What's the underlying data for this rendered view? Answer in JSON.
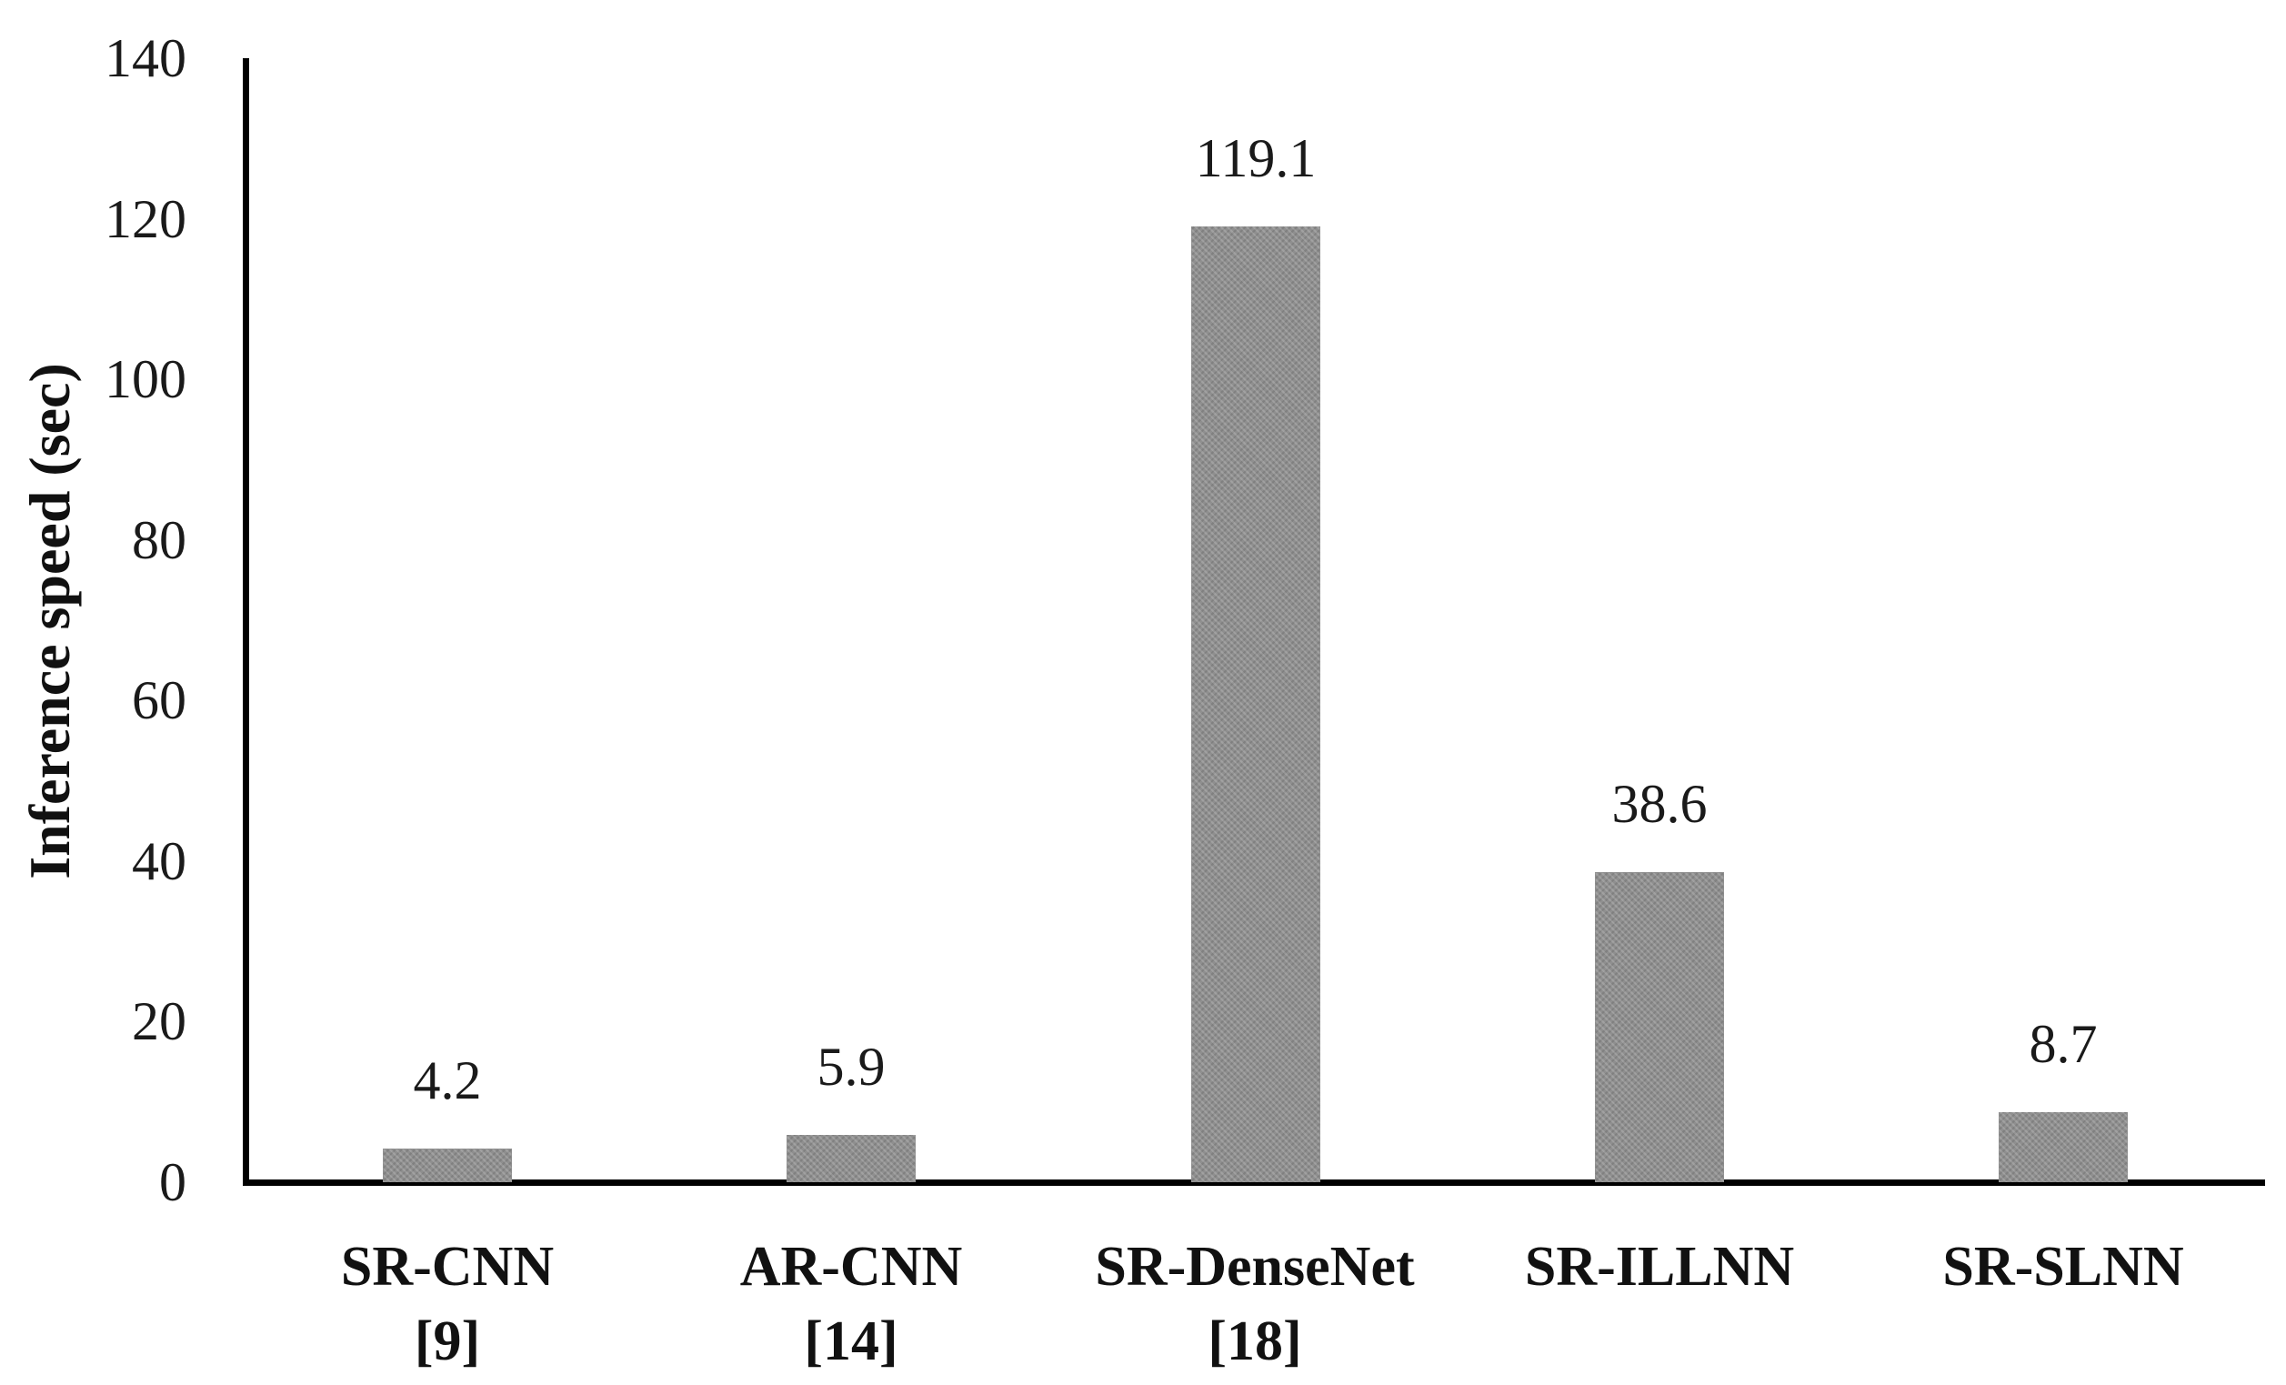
{
  "chart_data": {
    "type": "bar",
    "title": "",
    "ylabel": "Inference speed (sec)",
    "xlabel": "",
    "ylim": [
      0,
      140
    ],
    "yticks": [
      0,
      20,
      40,
      60,
      80,
      100,
      120,
      140
    ],
    "grid": false,
    "legend": "none",
    "categories": [
      "SR-CNN [9]",
      "AR-CNN [14]",
      "SR-DenseNet [18]",
      "SR-ILLNN",
      "SR-SLNN"
    ],
    "category_lines": [
      [
        "SR-CNN",
        "[9]"
      ],
      [
        "AR-CNN",
        "[14]"
      ],
      [
        "SR-DenseNet",
        "[18]"
      ],
      [
        "SR-ILLNN"
      ],
      [
        "SR-SLNN"
      ]
    ],
    "values": [
      4.2,
      5.9,
      119.1,
      38.6,
      8.7
    ],
    "data_labels": [
      "4.2",
      "5.9",
      "119.1",
      "38.6",
      "8.7"
    ],
    "bar_color": "#8f8f8f",
    "axis_color": "#000000",
    "text_color": "#111111"
  }
}
